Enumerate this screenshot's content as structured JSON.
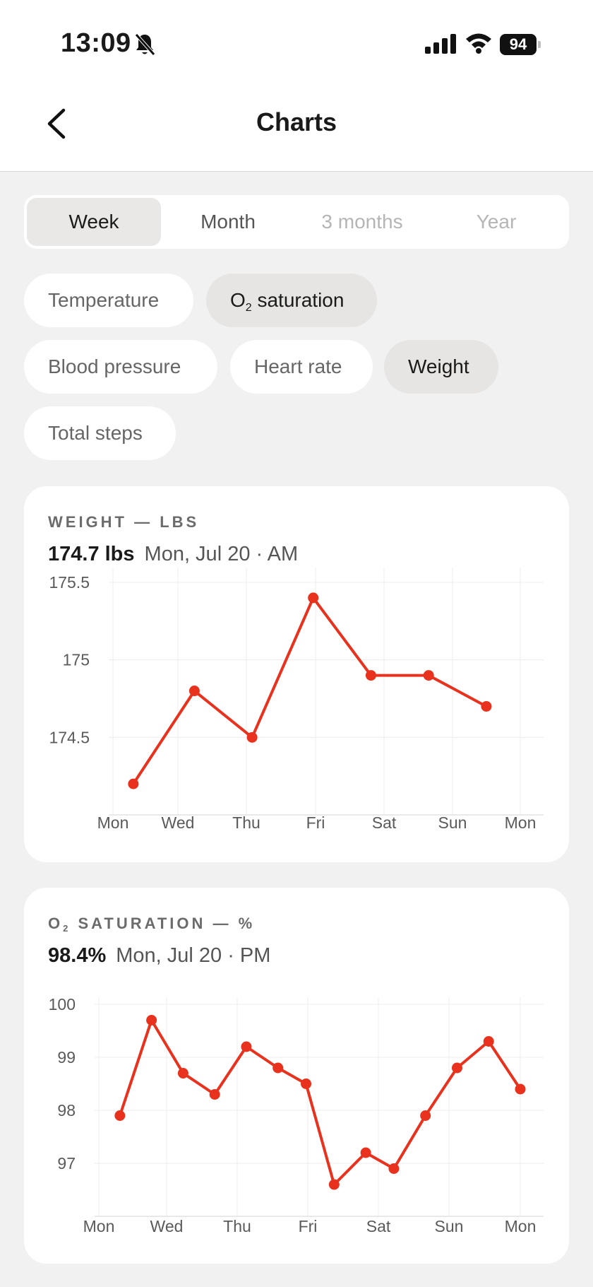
{
  "status_bar": {
    "time": "13:09",
    "battery": "94"
  },
  "header": {
    "title": "Charts"
  },
  "range_tabs": [
    {
      "label": "Week",
      "state": "active"
    },
    {
      "label": "Month",
      "state": "enabled"
    },
    {
      "label": "3 months",
      "state": "disabled"
    },
    {
      "label": "Year",
      "state": "disabled"
    }
  ],
  "metric_chips": [
    {
      "label": "Temperature",
      "selected": false
    },
    {
      "label": "O₂ saturation",
      "selected": true
    },
    {
      "label": "Blood pressure",
      "selected": false
    },
    {
      "label": "Heart rate",
      "selected": false
    },
    {
      "label": "Weight",
      "selected": true
    },
    {
      "label": "Total steps",
      "selected": false
    }
  ],
  "colors": {
    "line": "#e8321e",
    "grid": "#ececec"
  },
  "chart_data": [
    {
      "type": "line",
      "title": "WEIGHT — LBS",
      "latest_value": "174.7 lbs",
      "latest_time": "Mon, Jul 20 · AM",
      "x_tick_labels": [
        "Mon",
        "Wed",
        "Thu",
        "Fri",
        "Sat",
        "Sun",
        "Mon"
      ],
      "y_ticks": [
        174.5,
        175,
        175.5
      ],
      "y_tick_labels": [
        "174.5",
        "175",
        "175.5"
      ],
      "ylim": [
        174.0,
        175.55
      ],
      "grid": true,
      "series": [
        {
          "x": [
            0.3,
            1.2,
            2.05,
            2.95,
            3.8,
            4.65,
            5.5
          ],
          "values": [
            174.2,
            174.8,
            174.5,
            175.4,
            174.9,
            174.9,
            174.7
          ]
        }
      ]
    },
    {
      "type": "line",
      "title": "O₂ SATURATION — %",
      "latest_value": "98.4%",
      "latest_time": "Mon, Jul 20 · PM",
      "x_tick_labels": [
        "Mon",
        "Wed",
        "Thu",
        "Fri",
        "Sat",
        "Sun",
        "Mon"
      ],
      "y_ticks": [
        97,
        98,
        99,
        100
      ],
      "y_tick_labels": [
        "97",
        "98",
        "99",
        "100"
      ],
      "ylim": [
        96.0,
        100.0
      ],
      "grid": true,
      "series": [
        {
          "x": [
            0.3,
            0.75,
            1.2,
            1.65,
            2.1,
            2.55,
            2.95,
            3.35,
            3.8,
            4.2,
            4.65,
            5.1,
            5.55,
            6.0
          ],
          "values": [
            97.9,
            99.7,
            98.7,
            98.3,
            99.2,
            98.8,
            98.5,
            96.6,
            97.2,
            96.9,
            97.9,
            98.8,
            99.3,
            98.4
          ]
        }
      ]
    }
  ]
}
